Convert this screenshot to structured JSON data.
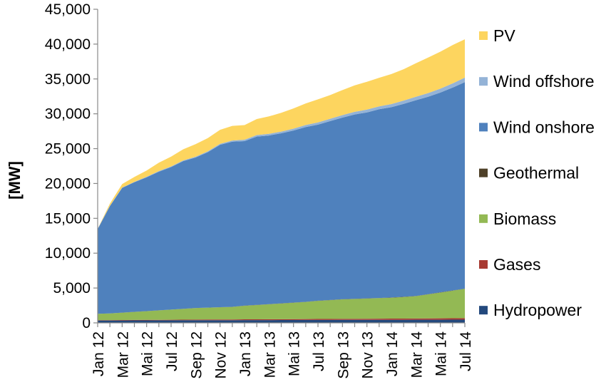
{
  "chart_data": {
    "type": "area",
    "stacked": true,
    "title": "",
    "xlabel": "",
    "ylabel": "[MW]",
    "ylim": [
      0,
      45000
    ],
    "yticks": [
      "0",
      "5,000",
      "10,000",
      "15,000",
      "20,000",
      "25,000",
      "30,000",
      "35,000",
      "40,000",
      "45,000"
    ],
    "x": [
      "Jan 12",
      "Feb 12",
      "Mar 12",
      "Apr 12",
      "Mai 12",
      "Jun 12",
      "Jul 12",
      "Aug 12",
      "Sep 12",
      "Oct 12",
      "Nov 12",
      "Dec 12",
      "Jan 13",
      "Feb 13",
      "Mar 13",
      "Apr 13",
      "Mai 13",
      "Jun 13",
      "Jul 13",
      "Aug 13",
      "Sep 13",
      "Oct 13",
      "Nov 13",
      "Dec 13",
      "Jan 14",
      "Feb 14",
      "Mar 14",
      "Apr 14",
      "Mai 14",
      "Jun 14",
      "Jul 14"
    ],
    "xtick_labels": [
      "Jan 12",
      "Mar 12",
      "Mai 12",
      "Jul 12",
      "Sep 12",
      "Nov 12",
      "Jan 13",
      "Mar 13",
      "Mai 13",
      "Jul 13",
      "Sep 13",
      "Nov 13",
      "Jan 14",
      "Mar 14",
      "Mai 14",
      "Jul 14"
    ],
    "legend_position": "right",
    "grid": false,
    "series": [
      {
        "name": "Hydropower",
        "color": "#23497d",
        "values": [
          350,
          350,
          350,
          360,
          360,
          370,
          370,
          380,
          380,
          390,
          390,
          390,
          400,
          400,
          400,
          410,
          410,
          420,
          420,
          420,
          430,
          430,
          430,
          440,
          440,
          440,
          450,
          450,
          450,
          460,
          460
        ]
      },
      {
        "name": "Gases",
        "color": "#a83a32",
        "values": [
          50,
          50,
          60,
          60,
          70,
          70,
          80,
          80,
          90,
          90,
          100,
          100,
          110,
          110,
          120,
          120,
          130,
          130,
          140,
          140,
          150,
          150,
          160,
          160,
          170,
          170,
          180,
          190,
          200,
          210,
          220
        ]
      },
      {
        "name": "Biomass",
        "color": "#93b954",
        "values": [
          900,
          950,
          1050,
          1150,
          1250,
          1350,
          1450,
          1550,
          1650,
          1700,
          1750,
          1800,
          1950,
          2050,
          2150,
          2250,
          2350,
          2450,
          2600,
          2700,
          2800,
          2850,
          2900,
          2950,
          3000,
          3100,
          3200,
          3450,
          3700,
          3950,
          4200
        ]
      },
      {
        "name": "Geothermal",
        "color": "#4e4028",
        "values": [
          10,
          10,
          10,
          10,
          10,
          10,
          10,
          10,
          10,
          10,
          10,
          10,
          20,
          20,
          20,
          20,
          20,
          20,
          20,
          20,
          20,
          20,
          20,
          20,
          30,
          30,
          30,
          30,
          30,
          30,
          30
        ]
      },
      {
        "name": "Wind onshore",
        "color": "#4f81bd",
        "values": [
          12150,
          15400,
          17900,
          18600,
          19200,
          19900,
          20450,
          21200,
          21600,
          22300,
          23300,
          23700,
          23600,
          24150,
          24200,
          24400,
          24690,
          25080,
          25270,
          25670,
          26050,
          26450,
          26690,
          27080,
          27310,
          27680,
          28090,
          28330,
          28670,
          29110,
          29630
        ]
      },
      {
        "name": "Wind offshore",
        "color": "#94b3d7",
        "values": [
          40,
          40,
          50,
          60,
          70,
          80,
          90,
          100,
          110,
          130,
          150,
          170,
          200,
          220,
          240,
          250,
          270,
          290,
          320,
          340,
          360,
          380,
          400,
          420,
          450,
          480,
          500,
          520,
          560,
          600,
          650
        ]
      },
      {
        "name": "PV",
        "color": "#fdd55f",
        "values": [
          0,
          300,
          500,
          700,
          900,
          1200,
          1400,
          1600,
          1800,
          1900,
          2000,
          2100,
          2100,
          2300,
          2500,
          2700,
          2900,
          3100,
          3300,
          3400,
          3600,
          3800,
          4000,
          4100,
          4300,
          4500,
          4800,
          5100,
          5300,
          5500,
          5500
        ]
      }
    ]
  }
}
